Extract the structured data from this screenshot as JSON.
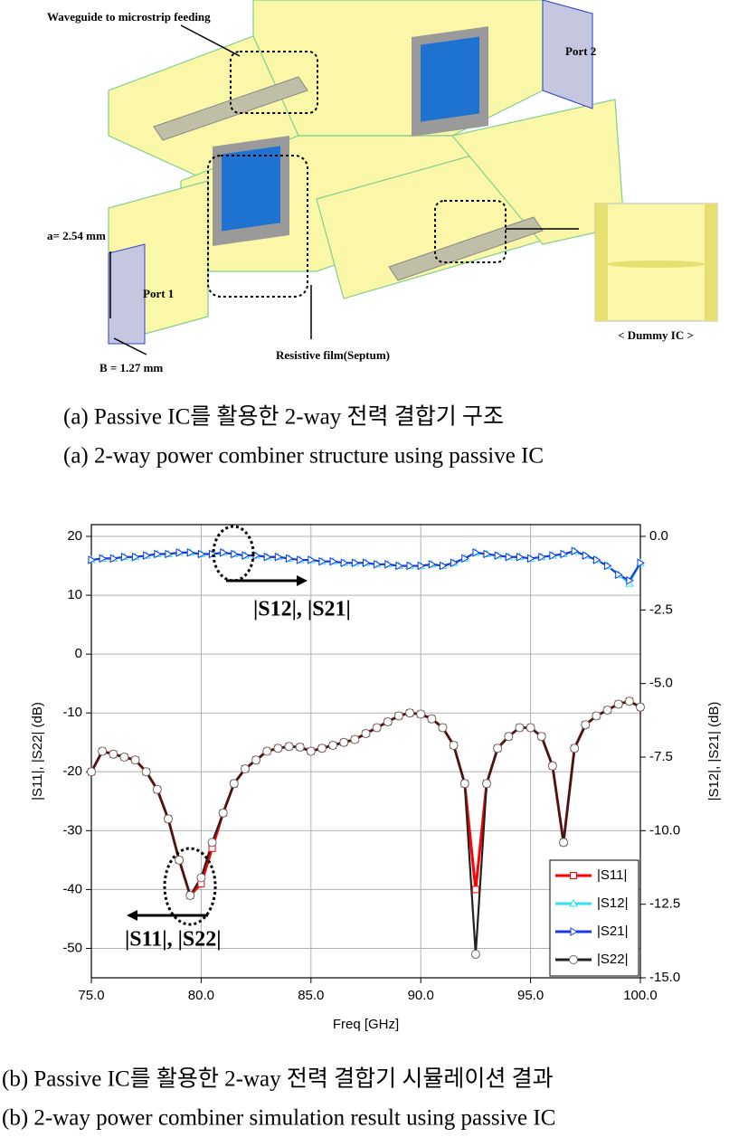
{
  "diagram": {
    "labels": {
      "feeding": "Waveguide to microstrip feeding",
      "port2": "Port 2",
      "a": "a= 2.54 mm",
      "port1": "Port 1",
      "b": "B = 1.27 mm",
      "septum": "Resistive film(Septum)",
      "dummy": "< Dummy IC >"
    }
  },
  "captions": {
    "a_ko": "(a) Passive IC를 활용한 2-way 전력 결합기 구조",
    "a_en": "(a) 2-way power combiner structure using passive IC",
    "b_ko": "(b) Passive IC를 활용한 2-way 전력 결합기 시뮬레이션 결과",
    "b_en": "(b) 2-way power combiner simulation result using passive IC"
  },
  "chart_data": {
    "type": "line",
    "xlabel": "Freq [GHz]",
    "ylabel": "|S11|, |S22| (dB)",
    "y2label": "|S12|, |S21| (dB)",
    "annotations": [
      "|S12|, |S21|",
      "|S11|, |S22|"
    ],
    "xlim": [
      75,
      100
    ],
    "xticks": [
      {
        "value": 75,
        "label": "75.0"
      },
      {
        "value": 80,
        "label": "80.0"
      },
      {
        "value": 85,
        "label": "85.0"
      },
      {
        "value": 90,
        "label": "90.0"
      },
      {
        "value": 95,
        "label": "95.0"
      },
      {
        "value": 100,
        "label": "100.0"
      }
    ],
    "ylim": [
      -55,
      22
    ],
    "yticks": [
      -50,
      -40,
      -30,
      -20,
      -10,
      0,
      10,
      20
    ],
    "y2lim": [
      -15,
      0.4
    ],
    "y2ticks": [
      {
        "value": -15,
        "label": "-15.0"
      },
      -12.5,
      {
        "value": -10,
        "label": "-10.0"
      },
      -7.5,
      {
        "value": -5,
        "label": "-5.0"
      },
      -2.5,
      {
        "value": 0,
        "label": "0.0"
      }
    ],
    "grid": true,
    "legend": "lower right",
    "x": [
      75,
      75.5,
      76,
      76.5,
      77,
      77.5,
      78,
      78.5,
      79,
      79.5,
      80,
      80.5,
      81,
      81.5,
      82,
      82.5,
      83,
      83.5,
      84,
      84.5,
      85,
      85.5,
      86,
      86.5,
      87,
      87.5,
      88,
      88.5,
      89,
      89.5,
      90,
      90.5,
      91,
      91.5,
      92,
      92.5,
      93,
      93.5,
      94,
      94.5,
      95,
      95.5,
      96,
      96.5,
      97,
      97.5,
      98,
      98.5,
      99,
      99.5,
      100
    ],
    "series": [
      {
        "name": "|S11|",
        "color": "#ff0000",
        "marker": "square",
        "values": [
          -20,
          -16.5,
          -17,
          -17.5,
          -18,
          -20,
          -23,
          -28,
          -35,
          -41,
          -39,
          -33,
          -27,
          -22,
          -19.5,
          -18,
          -16.5,
          -16,
          -15.7,
          -15.8,
          -16.5,
          -16,
          -15.5,
          -15,
          -14.5,
          -13.5,
          -12.5,
          -11.5,
          -10.5,
          -10,
          -10.2,
          -11,
          -12.5,
          -15.5,
          -22,
          -40,
          -22,
          -16,
          -14,
          -12.5,
          -12.5,
          -14,
          -19,
          -32,
          -16,
          -12,
          -10.5,
          -9.5,
          -8.5,
          -8,
          -9
        ]
      },
      {
        "name": "|S12|",
        "color": "#33e0f0",
        "marker": "triangle-up",
        "axis": "y2",
        "values": [
          -0.8,
          -0.75,
          -0.75,
          -0.7,
          -0.7,
          -0.65,
          -0.6,
          -0.6,
          -0.55,
          -0.55,
          -0.6,
          -0.6,
          -0.55,
          -0.6,
          -0.65,
          -0.65,
          -0.7,
          -0.7,
          -0.75,
          -0.8,
          -0.8,
          -0.85,
          -0.85,
          -0.9,
          -0.9,
          -0.9,
          -0.95,
          -0.95,
          -1.0,
          -1.0,
          -1.0,
          -0.95,
          -1.0,
          -0.9,
          -0.75,
          -0.55,
          -0.6,
          -0.65,
          -0.7,
          -0.7,
          -0.75,
          -0.7,
          -0.65,
          -0.6,
          -0.5,
          -0.65,
          -0.8,
          -1.0,
          -1.3,
          -1.6,
          -0.9
        ]
      },
      {
        "name": "|S21|",
        "color": "#1a3adf",
        "marker": "triangle-right",
        "axis": "y2",
        "values": [
          -0.8,
          -0.75,
          -0.75,
          -0.7,
          -0.7,
          -0.65,
          -0.6,
          -0.6,
          -0.55,
          -0.55,
          -0.6,
          -0.6,
          -0.55,
          -0.6,
          -0.65,
          -0.65,
          -0.7,
          -0.7,
          -0.75,
          -0.8,
          -0.8,
          -0.85,
          -0.85,
          -0.9,
          -0.9,
          -0.9,
          -0.95,
          -0.95,
          -1.0,
          -1.0,
          -1.0,
          -0.95,
          -1.0,
          -0.9,
          -0.75,
          -0.55,
          -0.6,
          -0.65,
          -0.7,
          -0.7,
          -0.75,
          -0.7,
          -0.65,
          -0.6,
          -0.5,
          -0.65,
          -0.8,
          -1.0,
          -1.3,
          -1.5,
          -0.9
        ]
      },
      {
        "name": "|S22|",
        "color": "#222222",
        "marker": "circle",
        "values": [
          -20,
          -16.5,
          -17,
          -17.5,
          -18,
          -20,
          -23,
          -28,
          -35,
          -41,
          -38,
          -32,
          -27,
          -22,
          -19.5,
          -18,
          -16.5,
          -16,
          -15.7,
          -15.8,
          -16.5,
          -16,
          -15.5,
          -15,
          -14.5,
          -13.5,
          -12.5,
          -11.5,
          -10.5,
          -10,
          -10.2,
          -11,
          -12.5,
          -15.5,
          -22,
          -51,
          -22,
          -16,
          -14,
          -12.5,
          -12.5,
          -14,
          -19,
          -32,
          -16,
          -12,
          -10.5,
          -9.5,
          -8.5,
          -8,
          -9
        ]
      }
    ]
  }
}
